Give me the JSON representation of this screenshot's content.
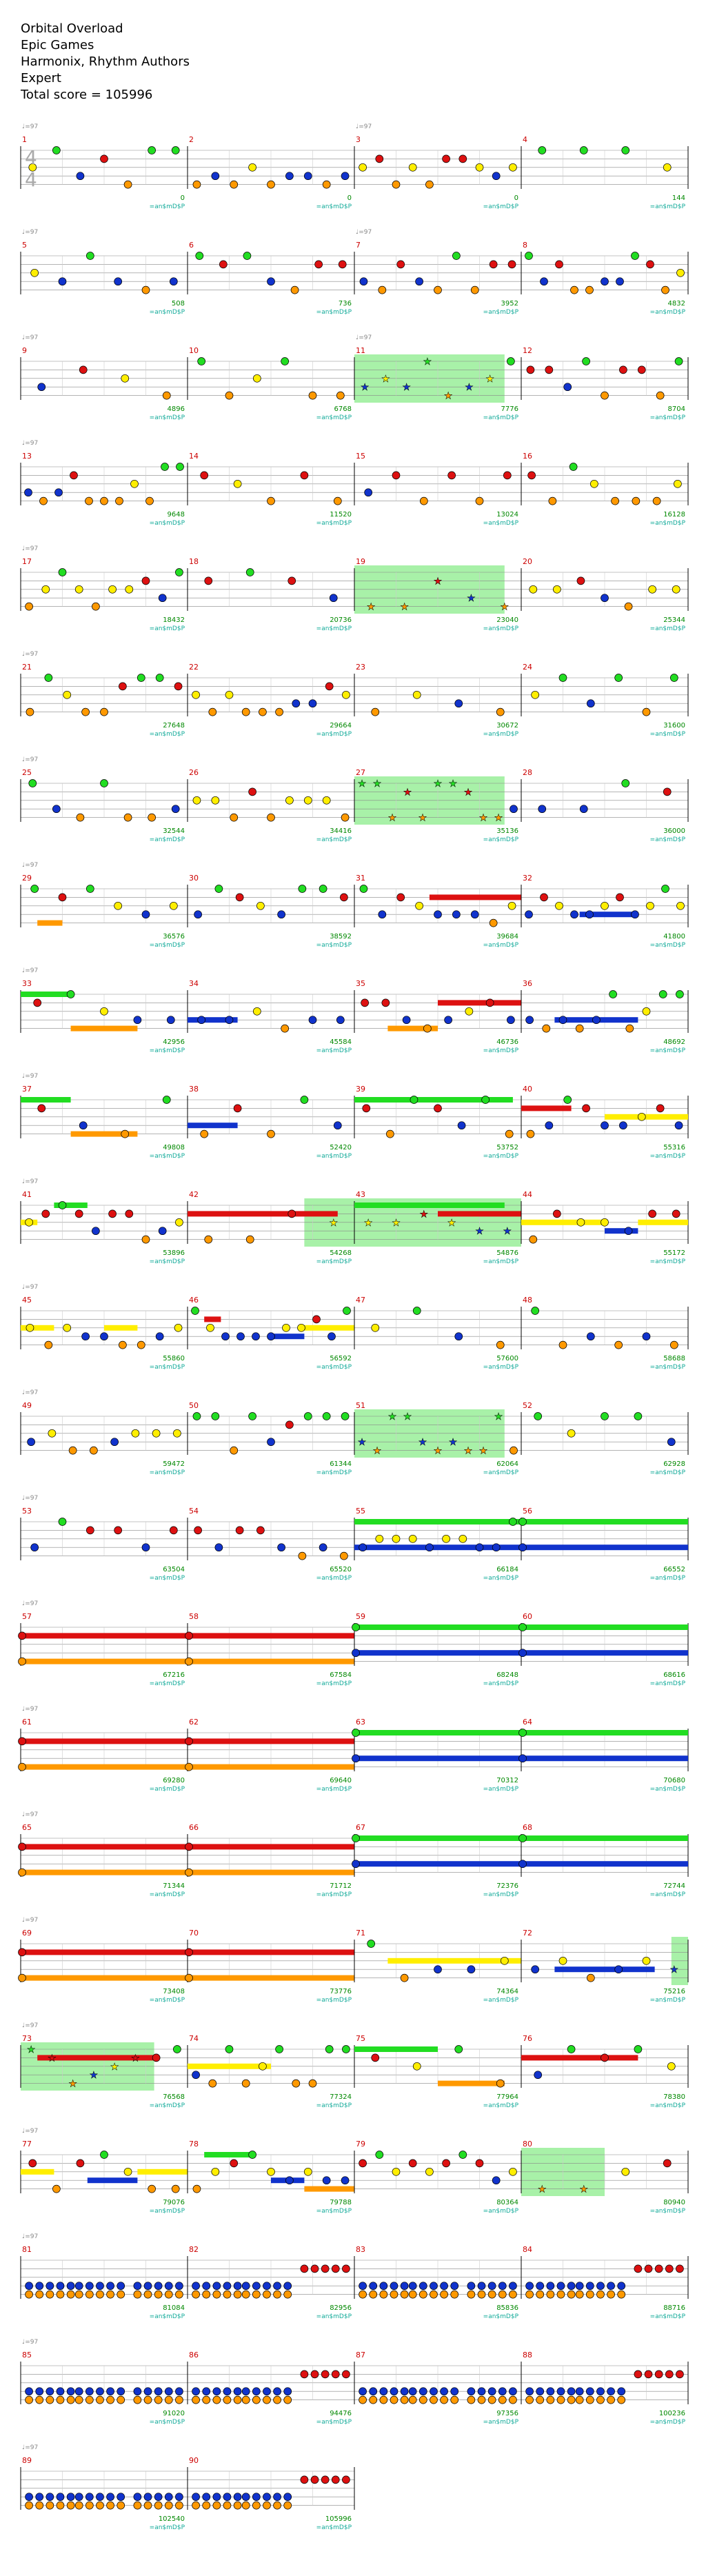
{
  "header": {
    "title": "Orbital Overload",
    "artist": "Epic Games",
    "charters": "Harmonix, Rhythm Authors",
    "difficulty": "Expert",
    "total_score_line": "Total score = 105996"
  },
  "legend": {
    "tempo_label": "♩=97",
    "time_signature_top": "4",
    "time_signature_bottom": "4",
    "measure_tag": "=an$mD$P"
  },
  "colors": {
    "green": "#22dd22",
    "red": "#dd1111",
    "yellow": "#ffee00",
    "blue": "#1133cc",
    "orange": "#ff9900",
    "sp_highlight": "#99ee99",
    "measure_number": "#cc0000",
    "score": "#008800",
    "tag": "#11aa99"
  },
  "scores": {
    "1": "0",
    "2": "0",
    "3": "0",
    "4": "144",
    "5": "508",
    "6": "736",
    "7": "3952",
    "8": "4832",
    "9": "4896",
    "10": "6768",
    "11": "7776",
    "12": "8704",
    "13": "9648",
    "14": "11520",
    "15": "13024",
    "16": "16128",
    "17": "18432",
    "18": "20736",
    "19": "23040",
    "20": "25344",
    "21": "27648",
    "22": "29664",
    "23": "30672",
    "24": "31600",
    "25": "32544",
    "26": "34416",
    "27": "35136",
    "28": "36000",
    "29": "36576",
    "30": "38592",
    "31": "39684",
    "32": "41800",
    "33": "42956",
    "34": "45584",
    "35": "46736",
    "36": "48692",
    "37": "49808",
    "38": "52420",
    "39": "53752",
    "40": "55316",
    "41": "53896",
    "42": "54268",
    "43": "54876",
    "44": "55172",
    "45": "55860",
    "46": "56592",
    "47": "57600",
    "48": "58688",
    "49": "59472",
    "50": "61344",
    "51": "62064",
    "52": "62928",
    "53": "63504",
    "54": "65520",
    "55": "66184",
    "56": "66552",
    "57": "67216",
    "58": "67584",
    "59": "68248",
    "60": "68616",
    "61": "69280",
    "62": "69640",
    "63": "70312",
    "64": "70680",
    "65": "71344",
    "66": "71712",
    "67": "72376",
    "68": "72744",
    "69": "73408",
    "70": "73776",
    "71": "74364",
    "72": "75216",
    "73": "76568",
    "74": "77324",
    "75": "77964",
    "76": "78380",
    "77": "79076",
    "78": "79788",
    "79": "80364",
    "80": "80940",
    "81": "81084",
    "82": "82956",
    "83": "85836",
    "84": "88716",
    "85": "91020",
    "86": "94476",
    "87": "97356",
    "88": "100236",
    "89": "102540",
    "90": "105996"
  }
}
